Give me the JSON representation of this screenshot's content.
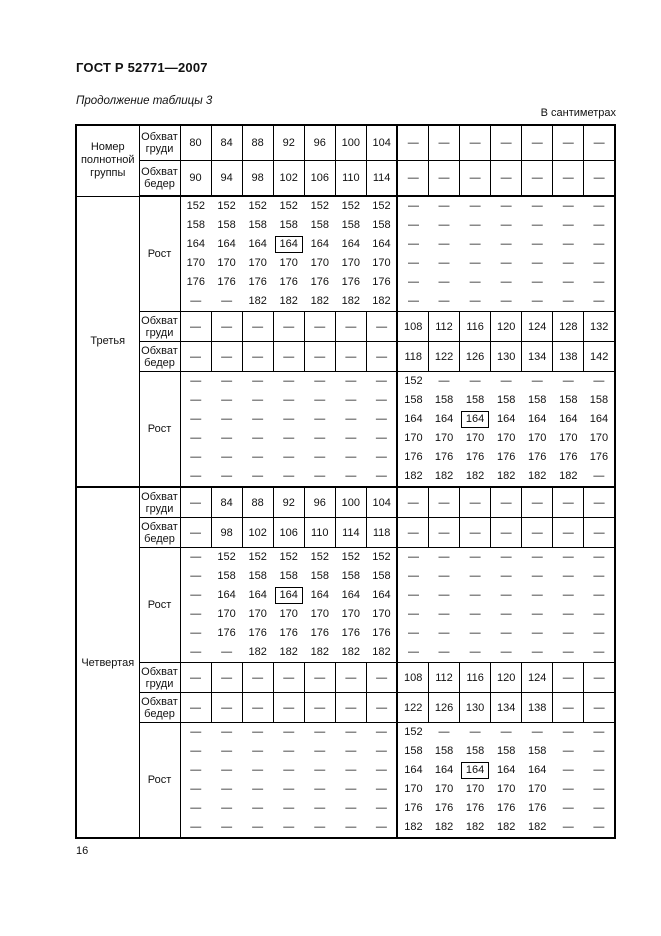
{
  "page": {
    "doc_code": "ГОСТ Р 52771—2007",
    "table_caption": "Продолжение таблицы 3",
    "units_note": "В сантиметрах",
    "page_number": "16"
  },
  "table": {
    "corner_label": "Номер полнотной группы",
    "row_labels": {
      "chest": "Обхват груди",
      "hips": "Обхват бедер",
      "height": "Рост"
    },
    "header": {
      "chest": [
        "80",
        "84",
        "88",
        "92",
        "96",
        "100",
        "104",
        "—",
        "—",
        "—",
        "—",
        "—",
        "—",
        "—"
      ],
      "hips": [
        "90",
        "94",
        "98",
        "102",
        "106",
        "110",
        "114",
        "—",
        "—",
        "—",
        "—",
        "—",
        "—",
        "—"
      ]
    },
    "groups": [
      {
        "name": "Третья",
        "rows": [
          {
            "type": "height",
            "boxed": [
              2,
              3
            ],
            "lines": [
              [
                "152",
                "152",
                "152",
                "152",
                "152",
                "152",
                "152",
                "—",
                "—",
                "—",
                "—",
                "—",
                "—",
                "—"
              ],
              [
                "158",
                "158",
                "158",
                "158",
                "158",
                "158",
                "158",
                "—",
                "—",
                "—",
                "—",
                "—",
                "—",
                "—"
              ],
              [
                "164",
                "164",
                "164",
                "164",
                "164",
                "164",
                "164",
                "—",
                "—",
                "—",
                "—",
                "—",
                "—",
                "—"
              ],
              [
                "170",
                "170",
                "170",
                "170",
                "170",
                "170",
                "170",
                "—",
                "—",
                "—",
                "—",
                "—",
                "—",
                "—"
              ],
              [
                "176",
                "176",
                "176",
                "176",
                "176",
                "176",
                "176",
                "—",
                "—",
                "—",
                "—",
                "—",
                "—",
                "—"
              ],
              [
                "—",
                "—",
                "182",
                "182",
                "182",
                "182",
                "182",
                "—",
                "—",
                "—",
                "—",
                "—",
                "—",
                "—"
              ]
            ]
          },
          {
            "type": "chest",
            "cells": [
              "—",
              "—",
              "—",
              "—",
              "—",
              "—",
              "—",
              "108",
              "112",
              "116",
              "120",
              "124",
              "128",
              "132"
            ]
          },
          {
            "type": "hips",
            "cells": [
              "—",
              "—",
              "—",
              "—",
              "—",
              "—",
              "—",
              "118",
              "122",
              "126",
              "130",
              "134",
              "138",
              "142"
            ]
          },
          {
            "type": "height",
            "boxed": [
              2,
              9
            ],
            "lines": [
              [
                "—",
                "—",
                "—",
                "—",
                "—",
                "—",
                "—",
                "152",
                "—",
                "—",
                "—",
                "—",
                "—",
                "—"
              ],
              [
                "—",
                "—",
                "—",
                "—",
                "—",
                "—",
                "—",
                "158",
                "158",
                "158",
                "158",
                "158",
                "158",
                "158"
              ],
              [
                "—",
                "—",
                "—",
                "—",
                "—",
                "—",
                "—",
                "164",
                "164",
                "164",
                "164",
                "164",
                "164",
                "164"
              ],
              [
                "—",
                "—",
                "—",
                "—",
                "—",
                "—",
                "—",
                "170",
                "170",
                "170",
                "170",
                "170",
                "170",
                "170"
              ],
              [
                "—",
                "—",
                "—",
                "—",
                "—",
                "—",
                "—",
                "176",
                "176",
                "176",
                "176",
                "176",
                "176",
                "176"
              ],
              [
                "—",
                "—",
                "—",
                "—",
                "—",
                "—",
                "—",
                "182",
                "182",
                "182",
                "182",
                "182",
                "182",
                "—"
              ]
            ]
          }
        ]
      },
      {
        "name": "Четвертая",
        "rows": [
          {
            "type": "chest",
            "cells": [
              "—",
              "84",
              "88",
              "92",
              "96",
              "100",
              "104",
              "—",
              "—",
              "—",
              "—",
              "—",
              "—",
              "—"
            ]
          },
          {
            "type": "hips",
            "cells": [
              "—",
              "98",
              "102",
              "106",
              "110",
              "114",
              "118",
              "—",
              "—",
              "—",
              "—",
              "—",
              "—",
              "—"
            ]
          },
          {
            "type": "height",
            "boxed": [
              2,
              3
            ],
            "lines": [
              [
                "—",
                "152",
                "152",
                "152",
                "152",
                "152",
                "152",
                "—",
                "—",
                "—",
                "—",
                "—",
                "—",
                "—"
              ],
              [
                "—",
                "158",
                "158",
                "158",
                "158",
                "158",
                "158",
                "—",
                "—",
                "—",
                "—",
                "—",
                "—",
                "—"
              ],
              [
                "—",
                "164",
                "164",
                "164",
                "164",
                "164",
                "164",
                "—",
                "—",
                "—",
                "—",
                "—",
                "—",
                "—"
              ],
              [
                "—",
                "170",
                "170",
                "170",
                "170",
                "170",
                "170",
                "—",
                "—",
                "—",
                "—",
                "—",
                "—",
                "—"
              ],
              [
                "—",
                "176",
                "176",
                "176",
                "176",
                "176",
                "176",
                "—",
                "—",
                "—",
                "—",
                "—",
                "—",
                "—"
              ],
              [
                "—",
                "—",
                "182",
                "182",
                "182",
                "182",
                "182",
                "—",
                "—",
                "—",
                "—",
                "—",
                "—",
                "—"
              ]
            ]
          },
          {
            "type": "chest",
            "cells": [
              "—",
              "—",
              "—",
              "—",
              "—",
              "—",
              "—",
              "108",
              "112",
              "116",
              "120",
              "124",
              "—",
              "—"
            ]
          },
          {
            "type": "hips",
            "cells": [
              "—",
              "—",
              "—",
              "—",
              "—",
              "—",
              "—",
              "122",
              "126",
              "130",
              "134",
              "138",
              "—",
              "—"
            ]
          },
          {
            "type": "height",
            "boxed": [
              2,
              9
            ],
            "lines": [
              [
                "—",
                "—",
                "—",
                "—",
                "—",
                "—",
                "—",
                "152",
                "—",
                "—",
                "—",
                "—",
                "—",
                "—"
              ],
              [
                "—",
                "—",
                "—",
                "—",
                "—",
                "—",
                "—",
                "158",
                "158",
                "158",
                "158",
                "158",
                "—",
                "—"
              ],
              [
                "—",
                "—",
                "—",
                "—",
                "—",
                "—",
                "—",
                "164",
                "164",
                "164",
                "164",
                "164",
                "—",
                "—"
              ],
              [
                "—",
                "—",
                "—",
                "—",
                "—",
                "—",
                "—",
                "170",
                "170",
                "170",
                "170",
                "170",
                "—",
                "—"
              ],
              [
                "—",
                "—",
                "—",
                "—",
                "—",
                "—",
                "—",
                "176",
                "176",
                "176",
                "176",
                "176",
                "—",
                "—"
              ],
              [
                "—",
                "—",
                "—",
                "—",
                "—",
                "—",
                "—",
                "182",
                "182",
                "182",
                "182",
                "182",
                "—",
                "—"
              ]
            ]
          }
        ]
      }
    ]
  }
}
